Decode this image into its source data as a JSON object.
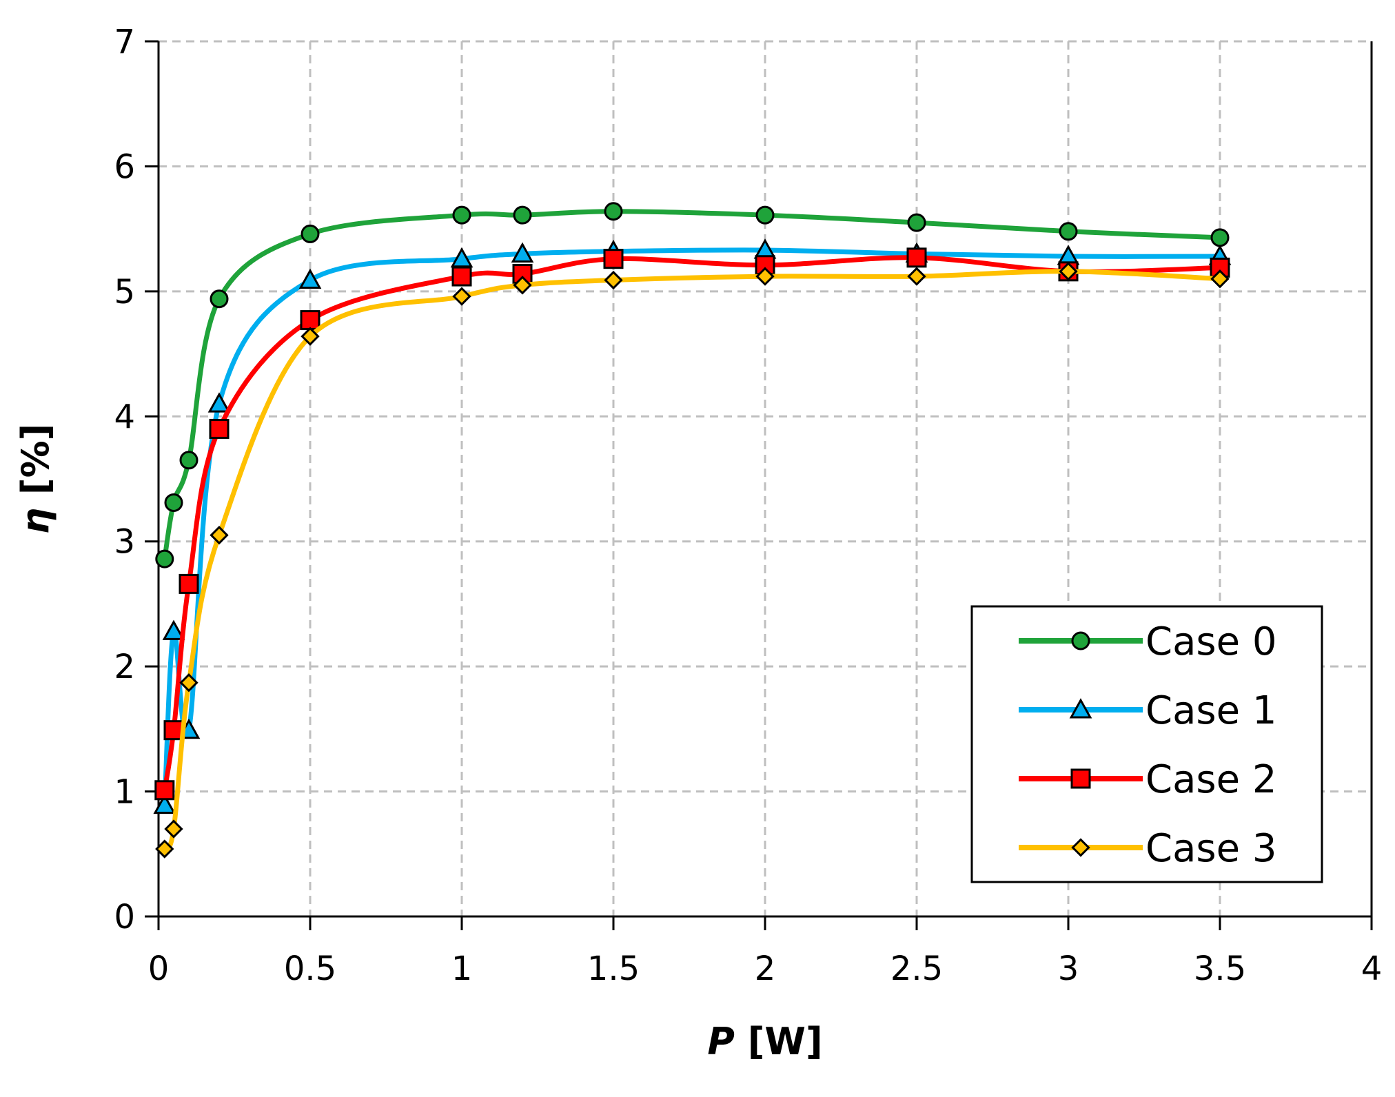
{
  "chart_data": {
    "type": "line",
    "title": "",
    "xlabel_symbol": "P",
    "xlabel_unit": "[W]",
    "ylabel_symbol": "η",
    "ylabel_unit": "[%]",
    "xlim": [
      0,
      4
    ],
    "ylim": [
      0,
      7
    ],
    "xticks": [
      "0",
      "0.5",
      "1",
      "1.5",
      "2",
      "2.5",
      "3",
      "3.5",
      "4"
    ],
    "yticks": [
      "0",
      "1",
      "2",
      "3",
      "4",
      "5",
      "6",
      "7"
    ],
    "grid": true,
    "legend_position": "bottom-right",
    "series": [
      {
        "name": "Case 0",
        "color": "#1fa33a",
        "marker": "circle",
        "x": [
          0.02,
          0.05,
          0.1,
          0.2,
          0.5,
          1.0,
          1.2,
          1.5,
          2.0,
          2.5,
          3.0,
          3.5
        ],
        "y": [
          2.86,
          3.31,
          3.65,
          4.94,
          5.46,
          5.61,
          5.61,
          5.64,
          5.61,
          5.55,
          5.48,
          5.43
        ]
      },
      {
        "name": "Case 1",
        "color": "#00aeef",
        "marker": "triangle",
        "x": [
          0.02,
          0.05,
          0.1,
          0.2,
          0.5,
          1.0,
          1.2,
          1.5,
          2.0,
          2.5,
          3.0,
          3.5
        ],
        "y": [
          0.89,
          2.28,
          1.49,
          4.1,
          5.09,
          5.26,
          5.3,
          5.32,
          5.33,
          5.3,
          5.28,
          5.28
        ]
      },
      {
        "name": "Case 2",
        "color": "#ff0000",
        "marker": "square",
        "x": [
          0.02,
          0.05,
          0.1,
          0.2,
          0.5,
          1.0,
          1.2,
          1.5,
          2.0,
          2.5,
          3.0,
          3.5
        ],
        "y": [
          1.01,
          1.49,
          2.66,
          3.9,
          4.77,
          5.12,
          5.14,
          5.26,
          5.21,
          5.27,
          5.16,
          5.19
        ]
      },
      {
        "name": "Case 3",
        "color": "#ffc000",
        "marker": "diamond",
        "x": [
          0.02,
          0.05,
          0.1,
          0.2,
          0.5,
          1.0,
          1.2,
          1.5,
          2.0,
          2.5,
          3.0,
          3.5
        ],
        "y": [
          0.54,
          0.7,
          1.87,
          3.05,
          4.64,
          4.96,
          5.05,
          5.09,
          5.12,
          5.12,
          5.16,
          5.1
        ]
      }
    ]
  }
}
